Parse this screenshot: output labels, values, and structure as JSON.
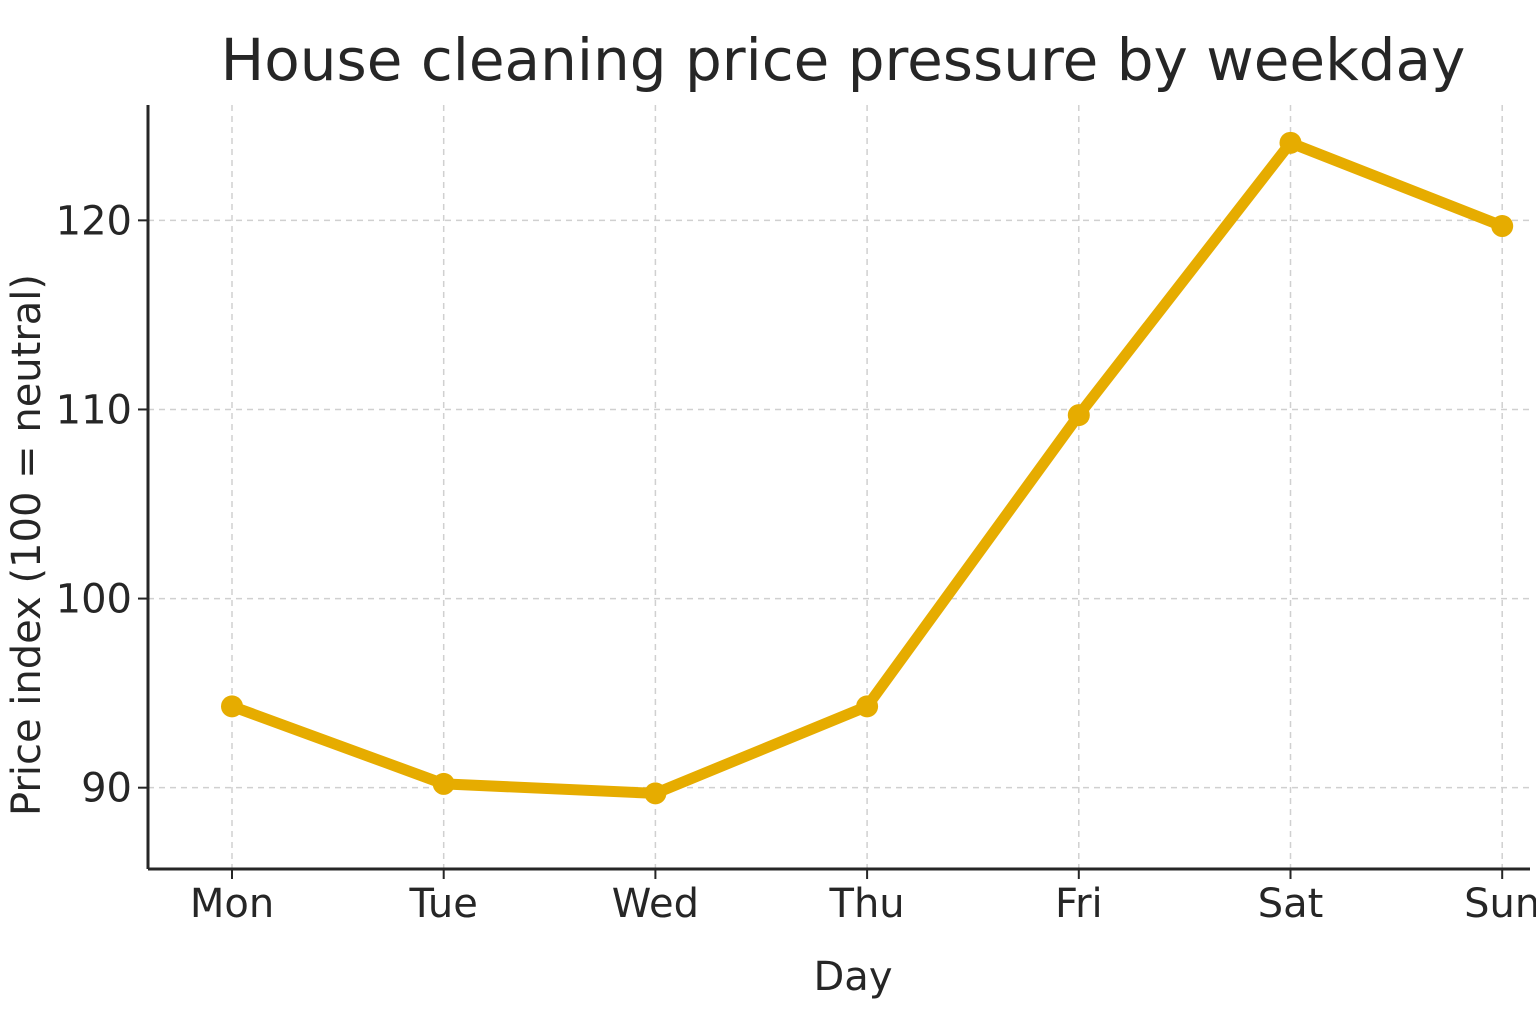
{
  "chart_data": {
    "type": "line",
    "title": "House cleaning price pressure by weekday",
    "xlabel": "Day",
    "ylabel": "Price index (100 = neutral)",
    "categories": [
      "Mon",
      "Tue",
      "Wed",
      "Thu",
      "Fri",
      "Sat",
      "Sun"
    ],
    "series": [
      {
        "values": [
          94.3,
          90.2,
          89.7,
          94.3,
          109.7,
          124.1,
          119.7
        ],
        "color": "#E6AC00"
      }
    ],
    "yticks": [
      90,
      100,
      110,
      120
    ],
    "ylim": [
      85.7,
      126.1
    ],
    "grid": true,
    "legend": "none"
  }
}
